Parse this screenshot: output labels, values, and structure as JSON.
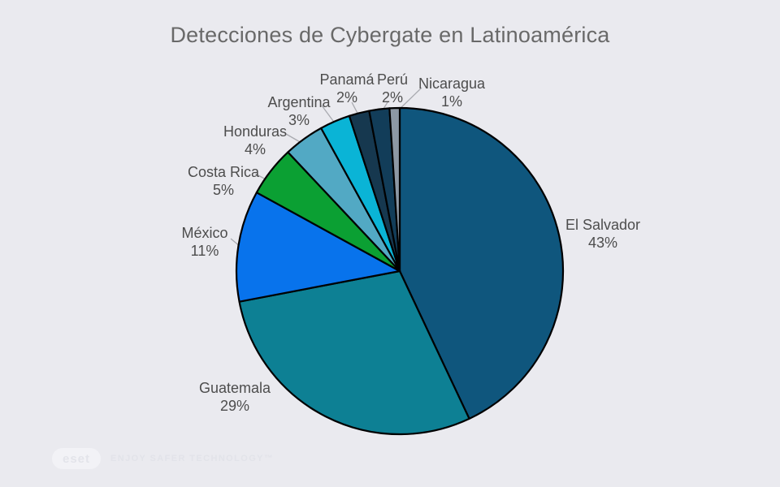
{
  "title": "Detecciones de Cybergate en Latinoamérica",
  "chart_data": {
    "type": "pie",
    "title": "Detecciones de Cybergate en Latinoamérica",
    "categories": [
      "El Salvador",
      "Guatemala",
      "México",
      "Costa Rica",
      "Honduras",
      "Argentina",
      "Panamá",
      "Perú",
      "Nicaragua"
    ],
    "values": [
      43,
      29,
      11,
      5,
      4,
      3,
      2,
      2,
      1
    ],
    "unit": "%",
    "pct_labels": [
      "43%",
      "29%",
      "11%",
      "5%",
      "4%",
      "3%",
      "2%",
      "2%",
      "1%"
    ],
    "colors": [
      "#0f567d",
      "#0d8094",
      "#0873ec",
      "#0ba033",
      "#52a9c4",
      "#0ab4d6",
      "#16384f",
      "#123d59",
      "#8d98a4"
    ],
    "start_angle_deg": -90,
    "direction": "clockwise",
    "slice_outline_color": "#000000",
    "labeling": "direct-outside-labels",
    "legend_position": "none"
  },
  "colors": {
    "background": "#eaeaef",
    "title_text": "#696969",
    "label_text": "#4d4d4d",
    "leader_line": "#a9aab0"
  },
  "watermark": {
    "logo_text": "eset",
    "tagline": "ENJOY SAFER TECHNOLOGY™"
  }
}
